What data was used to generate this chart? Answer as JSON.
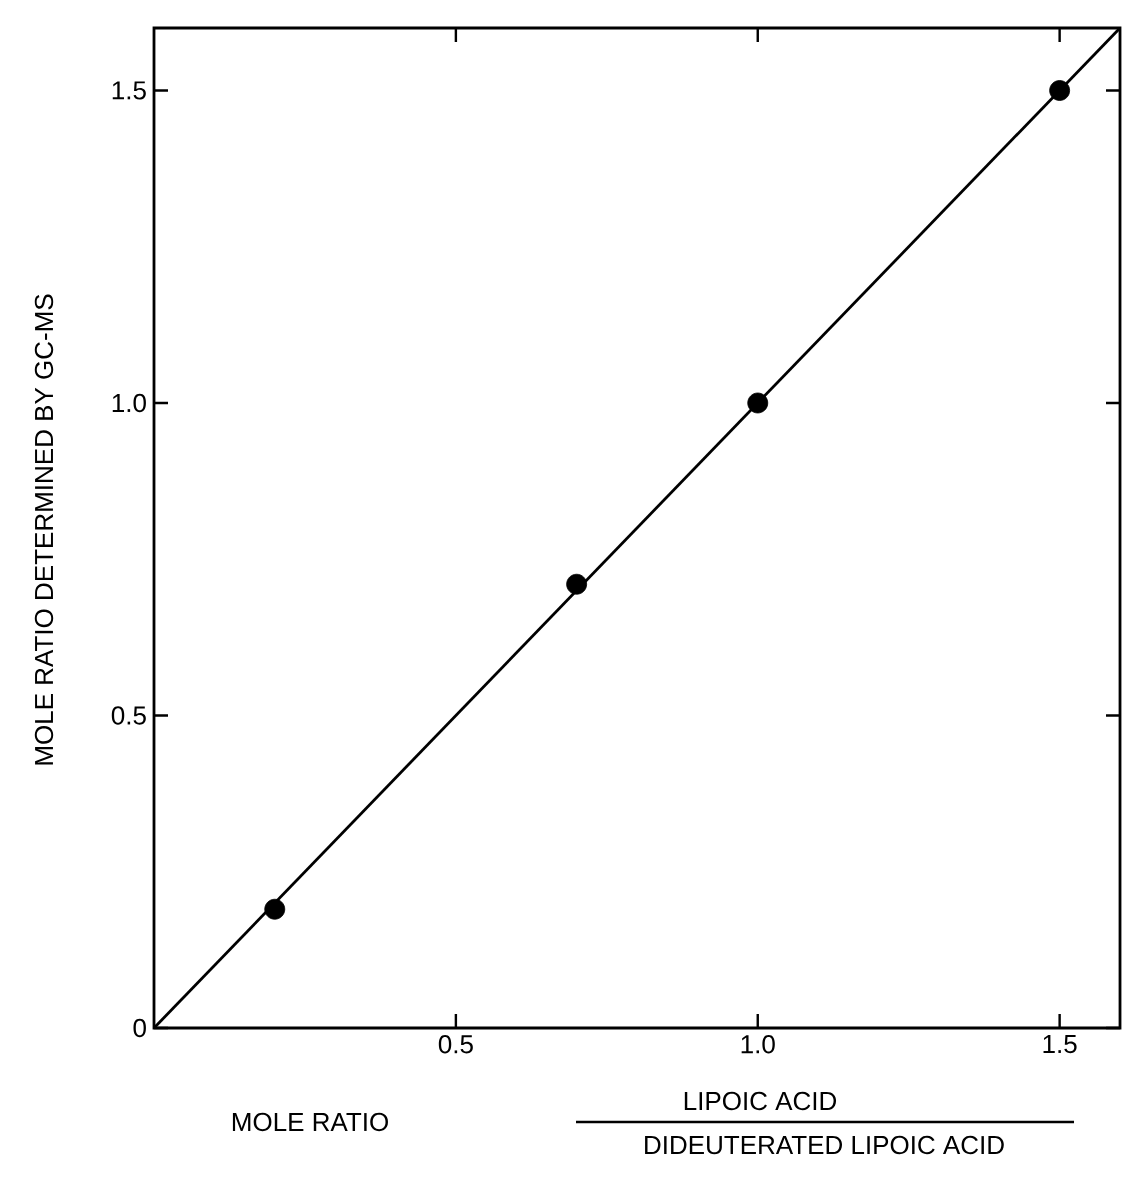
{
  "chart_data": {
    "type": "scatter",
    "xlabel": "MOLE RATIO",
    "ylabel": "MOLE RATIO DETERMINED BY GC-MS",
    "annotations": [
      "LIPOIC ACID",
      "DIDEUTERATED LIPOIC ACID"
    ],
    "xlim": [
      0,
      1.6
    ],
    "ylim": [
      0,
      1.6
    ],
    "xticks": [
      0.5,
      {
        "value": 1,
        "label": "1.0"
      },
      1.5
    ],
    "yticks": [
      0,
      0.5,
      {
        "value": 1,
        "label": "1.0"
      },
      1.5
    ],
    "grid": false,
    "series": [
      {
        "color": "#000000",
        "marker": "circle",
        "x": [
          0.2,
          0.7,
          1.0,
          1.5
        ],
        "values": [
          0.19,
          0.71,
          1.0,
          1.5
        ]
      },
      {
        "type": "line",
        "color": "#000000",
        "marker": "none",
        "line_style": "solid",
        "x": [
          0,
          1.6
        ],
        "values": [
          0,
          1.6
        ]
      }
    ]
  }
}
